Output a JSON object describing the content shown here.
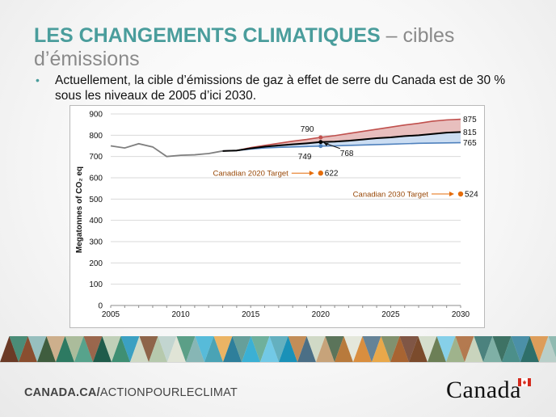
{
  "slide": {
    "title_main": "LES CHANGEMENTS CLIMATIQUES",
    "title_rest": " – cibles d’émissions",
    "bullet": "Actuellement, la cible d’émissions de gaz à effet de serre du Canada est de 30 % sous les niveaux de 2005 d’ici 2030."
  },
  "footer": {
    "link_bold": "CANADA.CA/",
    "link_rest": "ACTIONPOURLECLIMAT",
    "wordmark": "Canada"
  },
  "colors": {
    "title": "#4a9d9c",
    "historical": "#7f7f7f",
    "high": "#c0504d",
    "ref": "#000000",
    "low": "#4f81bd",
    "upper_band": "#e6b8b7",
    "lower_band": "#c5d9f1",
    "target": "#e46c0a",
    "target_label": "#984807"
  },
  "chart_data": {
    "type": "line",
    "ylabel": "Megatonnes of CO₂ eq",
    "xlabel": "",
    "xlim": [
      2005,
      2030
    ],
    "ylim": [
      0,
      900
    ],
    "xticks": [
      2005,
      2010,
      2015,
      2020,
      2025,
      2030
    ],
    "yticks": [
      0,
      100,
      200,
      300,
      400,
      500,
      600,
      700,
      800,
      900
    ],
    "grid": true,
    "series": [
      {
        "key": "historical",
        "x": [
          2005,
          2006,
          2007,
          2008,
          2009,
          2010,
          2011,
          2012,
          2013
        ],
        "y": [
          750,
          740,
          760,
          745,
          700,
          706,
          708,
          714,
          726
        ]
      },
      {
        "key": "high",
        "x": [
          2013,
          2014,
          2015,
          2016,
          2017,
          2018,
          2019,
          2020,
          2021,
          2022,
          2023,
          2024,
          2025,
          2026,
          2027,
          2028,
          2029,
          2030
        ],
        "y": [
          726,
          728,
          742,
          752,
          762,
          772,
          780,
          790,
          798,
          808,
          818,
          828,
          838,
          848,
          856,
          866,
          872,
          875
        ]
      },
      {
        "key": "ref",
        "x": [
          2013,
          2014,
          2015,
          2016,
          2017,
          2018,
          2019,
          2020,
          2021,
          2022,
          2023,
          2024,
          2025,
          2026,
          2027,
          2028,
          2029,
          2030
        ],
        "y": [
          726,
          728,
          738,
          746,
          752,
          757,
          762,
          768,
          770,
          774,
          780,
          786,
          790,
          796,
          800,
          806,
          812,
          815
        ]
      },
      {
        "key": "low",
        "x": [
          2013,
          2014,
          2015,
          2016,
          2017,
          2018,
          2019,
          2020,
          2021,
          2022,
          2023,
          2024,
          2025,
          2026,
          2027,
          2028,
          2029,
          2030
        ],
        "y": [
          726,
          728,
          735,
          740,
          743,
          745,
          747,
          749,
          750,
          752,
          754,
          756,
          758,
          760,
          762,
          763,
          764,
          765
        ]
      }
    ],
    "points": [
      {
        "key": "p790",
        "x": 2020,
        "y": 790,
        "label": "790",
        "color": "#c0504d"
      },
      {
        "key": "p768",
        "x": 2020,
        "y": 768,
        "label": "768",
        "color": "#000000"
      },
      {
        "key": "p749",
        "x": 2020,
        "y": 749,
        "label": "749",
        "color": "#4f81bd"
      },
      {
        "key": "p875",
        "x": 2030,
        "y": 875,
        "label": "875"
      },
      {
        "key": "p815",
        "x": 2030,
        "y": 815,
        "label": "815"
      },
      {
        "key": "p765",
        "x": 2030,
        "y": 765,
        "label": "765"
      }
    ],
    "targets": [
      {
        "key": "t2020",
        "x": 2020,
        "y": 622,
        "value": "622",
        "label": "Canadian 2020 Target"
      },
      {
        "key": "t2030",
        "x": 2030,
        "y": 524,
        "value": "524",
        "label": "Canadian 2030 Target"
      }
    ]
  }
}
